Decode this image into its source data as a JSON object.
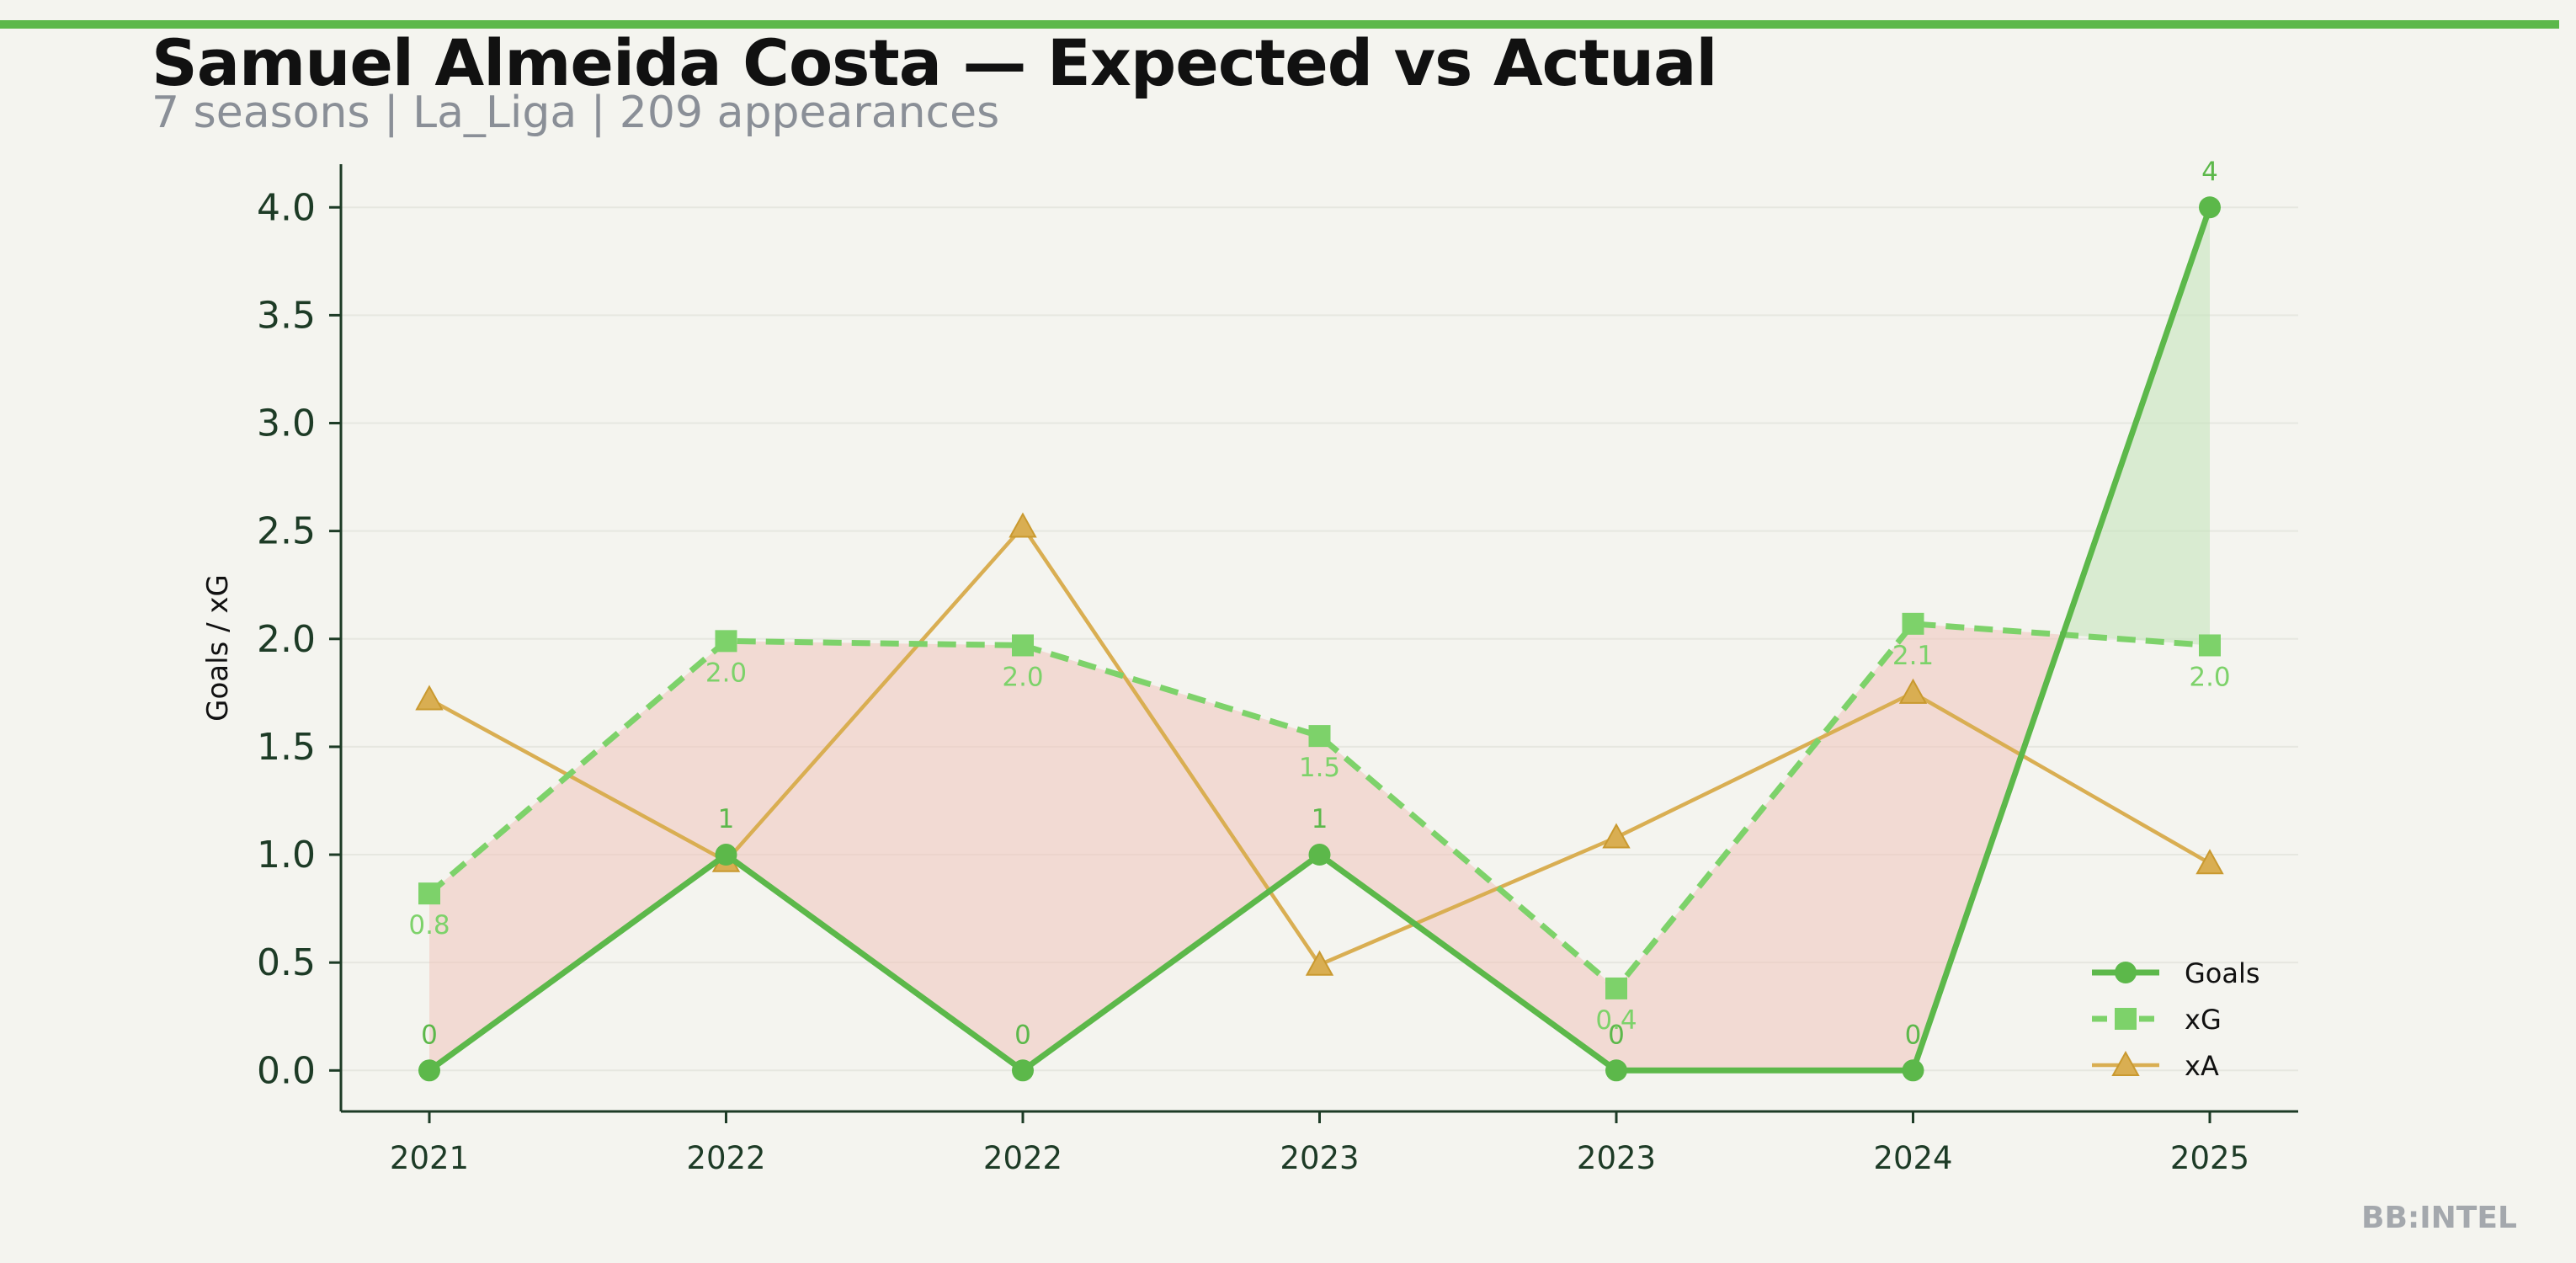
{
  "header": {
    "title": "Samuel Almeida Costa — Expected vs Actual",
    "subtitle": "7 seasons | La_Liga | 209 appearances"
  },
  "watermark": "BB:INTEL",
  "colors": {
    "accent": "#5cb84a",
    "goals": "#5cb84a",
    "xg": "#7dd26a",
    "xa": "#d9ae52",
    "under_fill": "#f0c4bc",
    "over_fill": "#c6e4bd",
    "axis": "#1d3b26",
    "background": "#f4f4ef"
  },
  "chart_data": {
    "type": "line",
    "categories": [
      "2021",
      "2022",
      "2022",
      "2023",
      "2023",
      "2024",
      "2025"
    ],
    "series": [
      {
        "name": "Goals",
        "values": [
          0,
          1,
          0,
          1,
          0,
          0,
          4
        ],
        "marker": "circle",
        "style": "solid",
        "labels": [
          "0",
          "1",
          "0",
          "1",
          "0",
          "0",
          "4"
        ]
      },
      {
        "name": "xG",
        "values": [
          0.82,
          1.99,
          1.97,
          1.55,
          0.38,
          2.07,
          1.97
        ],
        "marker": "square",
        "style": "dashed",
        "labels": [
          "0.8",
          "2.0",
          "2.0",
          "1.5",
          "0.4",
          "2.1",
          "2.0"
        ]
      },
      {
        "name": "xA",
        "values": [
          1.72,
          0.97,
          2.52,
          0.49,
          1.08,
          1.75,
          0.96
        ],
        "marker": "triangle",
        "style": "solid"
      }
    ],
    "ylabel": "Goals / xG",
    "xlabel": "",
    "yticks": [
      "0.0",
      "0.5",
      "1.0",
      "1.5",
      "2.0",
      "2.5",
      "3.0",
      "3.5",
      "4.0"
    ],
    "ylim": [
      -0.19,
      4.2
    ],
    "grid": "horizontal",
    "legend": "bottom-right",
    "shading": "between Goals and xG (red where Goals below xG, green where above)"
  }
}
